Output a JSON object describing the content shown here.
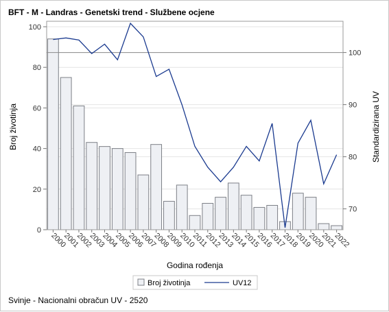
{
  "chart_data": {
    "type": "bar",
    "title": "BFT - M - Landras - Genetski trend - Službene ocjene",
    "xlabel": "Godina rođenja",
    "ylabel": "Broj životinja",
    "y2label": "Standardizirana UV",
    "categories": [
      "2000",
      "2001",
      "2002",
      "2003",
      "2004",
      "2005",
      "2006",
      "2007",
      "2008",
      "2009",
      "2010",
      "2011",
      "2012",
      "2013",
      "2014",
      "2015",
      "2016",
      "2017",
      "2018",
      "2019",
      "2020",
      "2021",
      "2022"
    ],
    "ylim": [
      0,
      100
    ],
    "yticks": [
      0,
      20,
      40,
      60,
      80,
      100
    ],
    "y2lim": [
      66,
      106
    ],
    "y2ticks": [
      70,
      80,
      90,
      100
    ],
    "reference_line_y2": 100,
    "grid": true,
    "legend_position": "bottom",
    "series": [
      {
        "name": "Broj životinja",
        "type": "bar",
        "axis": "left",
        "color": "#eef0f4",
        "edge_color": "#7c7f86",
        "values": [
          94,
          75,
          61,
          43,
          41,
          40,
          38,
          27,
          42,
          14,
          22,
          7,
          13,
          16,
          23,
          17,
          11,
          12,
          4,
          18,
          16,
          3,
          2
        ]
      },
      {
        "name": "UV12",
        "type": "line",
        "axis": "right",
        "color": "#1a3a8f",
        "values": [
          102.5,
          102.8,
          102.4,
          99.8,
          101.6,
          98.6,
          105.6,
          103.0,
          95.4,
          96.8,
          90.0,
          82.0,
          78.0,
          75.2,
          78.0,
          82.0,
          79.2,
          86.4,
          66.4,
          82.6,
          87.0,
          74.8,
          80.4
        ]
      }
    ]
  },
  "footer": "Svinje - Nacionalni obračun UV - 2520"
}
